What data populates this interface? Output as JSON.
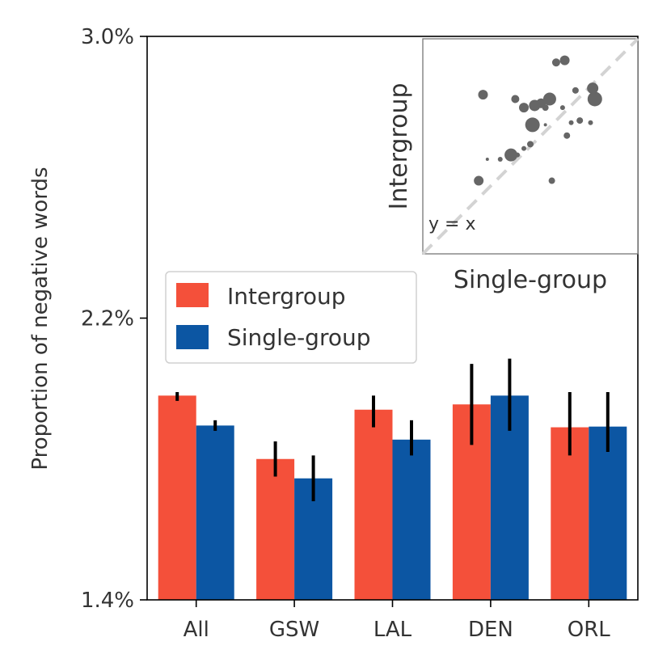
{
  "chart_data": [
    {
      "type": "bar",
      "categories": [
        "All",
        "GSW",
        "LAL",
        "DEN",
        "ORL"
      ],
      "series": [
        {
          "name": "Intergroup",
          "color": "#f4503a",
          "values": [
            1.98,
            1.8,
            1.94,
            1.955,
            1.89
          ],
          "err_low": [
            1.965,
            1.75,
            1.89,
            1.84,
            1.81
          ],
          "err_high": [
            1.99,
            1.85,
            1.98,
            2.07,
            1.99
          ]
        },
        {
          "name": "Single-group",
          "color": "#0c56a3",
          "values": [
            1.895,
            1.745,
            1.855,
            1.98,
            1.892
          ],
          "err_low": [
            1.88,
            1.68,
            1.81,
            1.88,
            1.82
          ],
          "err_high": [
            1.91,
            1.81,
            1.91,
            2.085,
            1.99
          ]
        }
      ],
      "ylabel": "Proportion of negative words",
      "ylim": [
        1.4,
        3.0
      ],
      "yticks": [
        1.4,
        2.2,
        3.0
      ],
      "ytick_labels": [
        "1.4%",
        "2.2%",
        "3.0%"
      ],
      "legend": "center-left",
      "grid": false
    },
    {
      "type": "scatter",
      "xlabel": "Single-group",
      "ylabel": "Intergroup",
      "annotation": "y = x",
      "reference_line": "y = x",
      "color": "#666666",
      "points": [
        {
          "x": 0.62,
          "y": 0.89,
          "size": 5
        },
        {
          "x": 0.66,
          "y": 0.9,
          "size": 6
        },
        {
          "x": 0.28,
          "y": 0.74,
          "size": 6
        },
        {
          "x": 0.43,
          "y": 0.72,
          "size": 5
        },
        {
          "x": 0.47,
          "y": 0.68,
          "size": 6
        },
        {
          "x": 0.52,
          "y": 0.69,
          "size": 7
        },
        {
          "x": 0.55,
          "y": 0.7,
          "size": 6
        },
        {
          "x": 0.59,
          "y": 0.72,
          "size": 8
        },
        {
          "x": 0.57,
          "y": 0.68,
          "size": 4
        },
        {
          "x": 0.65,
          "y": 0.68,
          "size": 3
        },
        {
          "x": 0.52,
          "y": 0.62,
          "size": 3
        },
        {
          "x": 0.57,
          "y": 0.6,
          "size": 2
        },
        {
          "x": 0.51,
          "y": 0.6,
          "size": 9
        },
        {
          "x": 0.67,
          "y": 0.55,
          "size": 4
        },
        {
          "x": 0.69,
          "y": 0.61,
          "size": 3
        },
        {
          "x": 0.73,
          "y": 0.62,
          "size": 4
        },
        {
          "x": 0.78,
          "y": 0.61,
          "size": 3
        },
        {
          "x": 0.8,
          "y": 0.72,
          "size": 9
        },
        {
          "x": 0.79,
          "y": 0.77,
          "size": 7
        },
        {
          "x": 0.71,
          "y": 0.76,
          "size": 4
        },
        {
          "x": 0.5,
          "y": 0.51,
          "size": 4
        },
        {
          "x": 0.47,
          "y": 0.49,
          "size": 3
        },
        {
          "x": 0.44,
          "y": 0.46,
          "size": 3
        },
        {
          "x": 0.41,
          "y": 0.46,
          "size": 8
        },
        {
          "x": 0.36,
          "y": 0.44,
          "size": 3
        },
        {
          "x": 0.3,
          "y": 0.44,
          "size": 2
        },
        {
          "x": 0.26,
          "y": 0.34,
          "size": 6
        },
        {
          "x": 0.6,
          "y": 0.34,
          "size": 4
        }
      ]
    }
  ]
}
